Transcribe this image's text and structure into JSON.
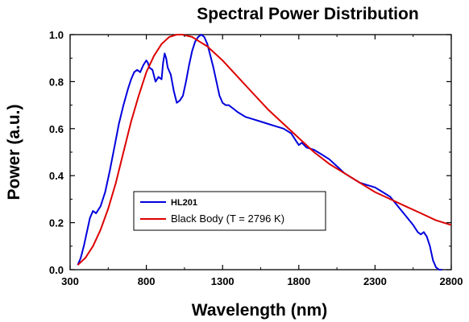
{
  "chart_data": {
    "type": "line",
    "title": "Spectral Power Distribution",
    "xlabel": "Wavelength (nm)",
    "ylabel": "Power (a.u.)",
    "xlim": [
      300,
      2800
    ],
    "ylim": [
      0,
      1.0
    ],
    "xticks": [
      300,
      800,
      1300,
      1800,
      2300,
      2800
    ],
    "xtick_labels": [
      "300",
      "800",
      "1300",
      "1800",
      "2300",
      "2800"
    ],
    "yticks": [
      0.0,
      0.2,
      0.4,
      0.6,
      0.8,
      1.0
    ],
    "ytick_labels": [
      "0.0",
      "0.2",
      "0.4",
      "0.6",
      "0.8",
      "1.0"
    ],
    "grid": false,
    "legend_position": "bottom-left",
    "series": [
      {
        "name": "HL201",
        "color": "#0000dd",
        "x": [
          350,
          370,
          390,
          410,
          430,
          450,
          470,
          500,
          530,
          560,
          590,
          620,
          650,
          680,
          700,
          720,
          740,
          760,
          780,
          800,
          810,
          820,
          840,
          860,
          880,
          900,
          910,
          920,
          930,
          940,
          960,
          980,
          1000,
          1020,
          1040,
          1060,
          1080,
          1100,
          1120,
          1140,
          1160,
          1180,
          1200,
          1220,
          1240,
          1260,
          1280,
          1300,
          1320,
          1340,
          1360,
          1380,
          1400,
          1450,
          1500,
          1550,
          1600,
          1650,
          1700,
          1750,
          1780,
          1800,
          1820,
          1850,
          1900,
          1950,
          2000,
          2050,
          2100,
          2150,
          2200,
          2250,
          2300,
          2350,
          2400,
          2450,
          2500,
          2550,
          2580,
          2600,
          2620,
          2640,
          2660,
          2680,
          2700,
          2720,
          2740
        ],
        "y": [
          0.02,
          0.05,
          0.1,
          0.16,
          0.22,
          0.25,
          0.24,
          0.27,
          0.33,
          0.42,
          0.52,
          0.62,
          0.7,
          0.77,
          0.81,
          0.84,
          0.85,
          0.84,
          0.87,
          0.89,
          0.88,
          0.86,
          0.85,
          0.8,
          0.82,
          0.81,
          0.88,
          0.92,
          0.9,
          0.86,
          0.83,
          0.76,
          0.71,
          0.72,
          0.74,
          0.8,
          0.87,
          0.93,
          0.97,
          0.99,
          1.0,
          0.99,
          0.96,
          0.91,
          0.86,
          0.8,
          0.74,
          0.71,
          0.7,
          0.7,
          0.69,
          0.68,
          0.67,
          0.65,
          0.64,
          0.63,
          0.62,
          0.61,
          0.6,
          0.58,
          0.55,
          0.53,
          0.54,
          0.52,
          0.51,
          0.49,
          0.47,
          0.44,
          0.41,
          0.39,
          0.37,
          0.36,
          0.35,
          0.33,
          0.31,
          0.27,
          0.23,
          0.19,
          0.16,
          0.15,
          0.16,
          0.14,
          0.1,
          0.04,
          0.01,
          0.0,
          0.0
        ]
      },
      {
        "name": "Black Body (T = 2796 K)",
        "color": "#dd0000",
        "temperature_K": 2796,
        "x": [
          350,
          400,
          450,
          500,
          550,
          600,
          650,
          700,
          750,
          800,
          850,
          900,
          950,
          1000,
          1036,
          1100,
          1150,
          1200,
          1300,
          1400,
          1500,
          1600,
          1700,
          1800,
          1900,
          2000,
          2100,
          2200,
          2300,
          2400,
          2500,
          2600,
          2700,
          2800
        ],
        "y": [
          0.02,
          0.05,
          0.1,
          0.17,
          0.26,
          0.37,
          0.5,
          0.63,
          0.74,
          0.84,
          0.91,
          0.96,
          0.99,
          1.0,
          1.0,
          0.99,
          0.97,
          0.95,
          0.89,
          0.82,
          0.75,
          0.68,
          0.62,
          0.56,
          0.5,
          0.45,
          0.41,
          0.37,
          0.33,
          0.3,
          0.27,
          0.24,
          0.21,
          0.19
        ]
      }
    ]
  }
}
